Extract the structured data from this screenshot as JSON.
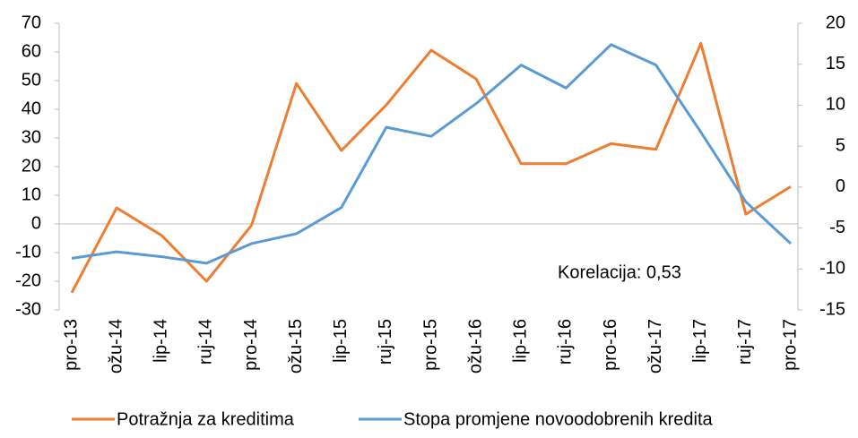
{
  "chart_data": {
    "type": "line",
    "annotation": "Korelacija: 0,53",
    "categories": [
      "pro-13",
      "ožu-14",
      "lip-14",
      "ruj-14",
      "pro-14",
      "ožu-15",
      "lip-15",
      "ruj-15",
      "pro-15",
      "ožu-16",
      "lip-16",
      "ruj-16",
      "pro-16",
      "ožu-17",
      "lip-17",
      "ruj-17",
      "pro-17"
    ],
    "series": [
      {
        "name": "Potražnja za kreditima",
        "color": "#ed7d31",
        "axis": "y",
        "values": [
          -24,
          5.6,
          -4,
          -20,
          -0.5,
          49,
          25.6,
          41.5,
          60.6,
          50.6,
          21,
          21,
          28,
          26,
          63,
          3.4,
          13
        ]
      },
      {
        "name": "Stopa promjene novoodobrenih kredita",
        "color": "#5b9bd5",
        "axis": "y2",
        "values": [
          -8.7,
          -7.9,
          -8.5,
          -9.3,
          -6.9,
          -5.7,
          -2.5,
          7.3,
          6.2,
          10.2,
          14.9,
          12.1,
          17.4,
          14.9,
          6.7,
          -1.8,
          -6.9
        ]
      }
    ],
    "ylim": [
      -30,
      70
    ],
    "yticks": [
      -30,
      -20,
      -10,
      0,
      10,
      20,
      30,
      40,
      50,
      60,
      70
    ],
    "y2lim": [
      -15,
      20
    ],
    "y2ticks": [
      -15,
      -10,
      -5,
      0,
      5,
      10,
      15,
      20
    ],
    "legend": "bottom"
  }
}
